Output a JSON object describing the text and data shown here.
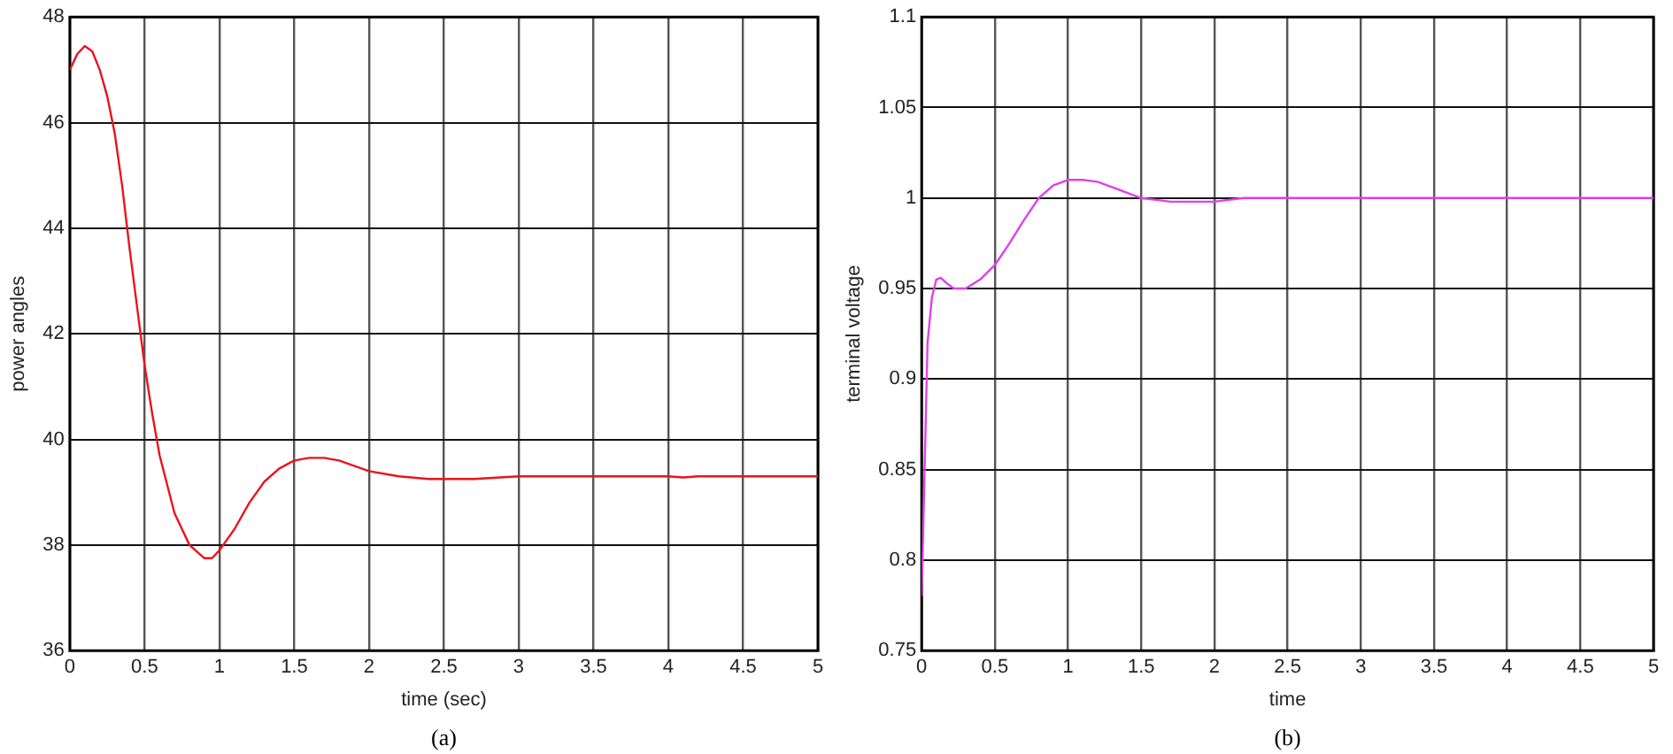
{
  "chart_data": [
    {
      "type": "line",
      "xlabel": "time (sec)",
      "ylabel": "power angles",
      "annotations": [
        "(a)"
      ],
      "xlim": [
        0,
        5
      ],
      "ylim": [
        36,
        48
      ],
      "xticks": [
        0,
        0.5,
        1,
        1.5,
        2,
        2.5,
        3,
        3.5,
        4,
        4.5,
        5
      ],
      "yticks": [
        36,
        38,
        40,
        42,
        44,
        46,
        48
      ],
      "grid": true,
      "series": [
        {
          "color": "#e8141e",
          "x": [
            0,
            0.05,
            0.1,
            0.15,
            0.2,
            0.25,
            0.3,
            0.35,
            0.4,
            0.45,
            0.5,
            0.55,
            0.6,
            0.7,
            0.8,
            0.9,
            0.95,
            1.0,
            1.1,
            1.2,
            1.3,
            1.4,
            1.5,
            1.6,
            1.7,
            1.8,
            1.9,
            2.0,
            2.2,
            2.4,
            2.7,
            3.0,
            4.0,
            4.1,
            4.2,
            5
          ],
          "values": [
            47.0,
            47.3,
            47.45,
            47.35,
            47.0,
            46.5,
            45.8,
            44.8,
            43.6,
            42.5,
            41.4,
            40.5,
            39.7,
            38.6,
            38.0,
            37.75,
            37.75,
            37.9,
            38.3,
            38.8,
            39.2,
            39.45,
            39.6,
            39.65,
            39.65,
            39.6,
            39.5,
            39.4,
            39.3,
            39.25,
            39.25,
            39.3,
            39.3,
            39.28,
            39.3,
            39.3
          ]
        }
      ]
    },
    {
      "type": "line",
      "xlabel": "time",
      "ylabel": "terminal voltage",
      "annotations": [
        "(b)"
      ],
      "xlim": [
        0,
        5
      ],
      "ylim": [
        0.75,
        1.1
      ],
      "xticks": [
        0,
        0.5,
        1,
        1.5,
        2,
        2.5,
        3,
        3.5,
        4,
        4.5,
        5
      ],
      "yticks": [
        0.75,
        0.8,
        0.85,
        0.9,
        0.95,
        1,
        1.05,
        1.1
      ],
      "grid": true,
      "series": [
        {
          "color": "#e040e8",
          "x": [
            0,
            0.02,
            0.04,
            0.07,
            0.1,
            0.13,
            0.17,
            0.22,
            0.3,
            0.4,
            0.5,
            0.6,
            0.7,
            0.8,
            0.9,
            1.0,
            1.1,
            1.2,
            1.3,
            1.4,
            1.5,
            1.6,
            1.7,
            2.0,
            2.2,
            5
          ],
          "values": [
            0.78,
            0.85,
            0.92,
            0.945,
            0.955,
            0.956,
            0.953,
            0.95,
            0.95,
            0.955,
            0.963,
            0.975,
            0.988,
            1.0,
            1.007,
            1.01,
            1.01,
            1.009,
            1.006,
            1.003,
            1.0,
            0.999,
            0.998,
            0.998,
            1.0,
            1.0
          ]
        }
      ]
    }
  ]
}
